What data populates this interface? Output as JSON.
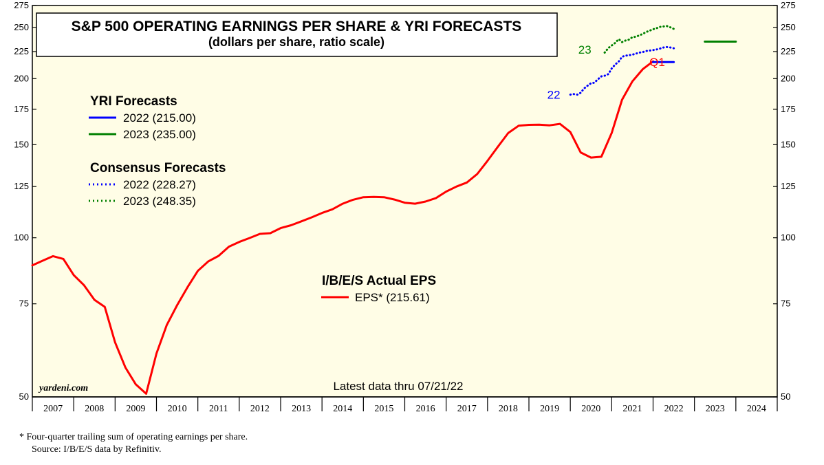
{
  "chart_data": {
    "type": "line",
    "title": "S&P 500 OPERATING EARNINGS PER SHARE & YRI FORECASTS",
    "subtitle": "(dollars per share, ratio scale)",
    "scale": "log",
    "ylim": [
      50,
      275
    ],
    "yticks": [
      "275",
      "250",
      "225",
      "200",
      "175",
      "150",
      "125",
      "100",
      "75",
      "50"
    ],
    "ytick_values": [
      275,
      250,
      225,
      200,
      175,
      150,
      125,
      100,
      75,
      50
    ],
    "xlim": [
      2007,
      2025
    ],
    "years": [
      "2007",
      "2008",
      "2009",
      "2010",
      "2011",
      "2012",
      "2013",
      "2014",
      "2015",
      "2016",
      "2017",
      "2018",
      "2019",
      "2020",
      "2021",
      "2022",
      "2023",
      "2024"
    ],
    "grid": false,
    "legend_groups": {
      "yri_title": "YRI Forecasts",
      "yri_items": [
        {
          "label": "2022 (215.00)",
          "color": "#0000ff",
          "style": "solid"
        },
        {
          "label": "2023 (235.00)",
          "color": "#008000",
          "style": "solid"
        }
      ],
      "consensus_title": "Consensus Forecasts",
      "consensus_items": [
        {
          "label": "2022 (228.27)",
          "color": "#0000ff",
          "style": "dotted"
        },
        {
          "label": "2023 (248.35)",
          "color": "#008000",
          "style": "dotted"
        }
      ],
      "actual_title": "I/B/E/S Actual EPS",
      "actual_items": [
        {
          "label": "EPS* (215.61)",
          "color": "#ff0000",
          "style": "solid"
        }
      ]
    },
    "series": [
      {
        "name": "EPS* (215.61)",
        "color": "#ff0000",
        "style": "solid",
        "x": [
          2007.0,
          2007.25,
          2007.5,
          2007.75,
          2008.0,
          2008.25,
          2008.5,
          2008.75,
          2009.0,
          2009.25,
          2009.5,
          2009.75,
          2010.0,
          2010.25,
          2010.5,
          2010.75,
          2011.0,
          2011.25,
          2011.5,
          2011.75,
          2012.0,
          2012.25,
          2012.5,
          2012.75,
          2013.0,
          2013.25,
          2013.5,
          2013.75,
          2014.0,
          2014.25,
          2014.5,
          2014.75,
          2015.0,
          2015.25,
          2015.5,
          2015.75,
          2016.0,
          2016.25,
          2016.5,
          2016.75,
          2017.0,
          2017.25,
          2017.5,
          2017.75,
          2018.0,
          2018.25,
          2018.5,
          2018.75,
          2019.0,
          2019.25,
          2019.5,
          2019.75,
          2020.0,
          2020.25,
          2020.5,
          2020.75,
          2021.0,
          2021.25,
          2021.5,
          2021.75,
          2022.0
        ],
        "values": [
          88.7,
          90.5,
          92.3,
          91.2,
          85.0,
          81.3,
          76.3,
          74.0,
          63.4,
          56.8,
          52.8,
          50.7,
          60.4,
          68.4,
          74.6,
          80.6,
          86.6,
          90.2,
          92.4,
          96.2,
          98.2,
          99.9,
          101.7,
          102.0,
          104.3,
          105.6,
          107.4,
          109.3,
          111.4,
          113.2,
          116.0,
          118.0,
          119.3,
          119.5,
          119.3,
          118.1,
          116.5,
          116.0,
          117.1,
          118.8,
          122.3,
          125.0,
          127.2,
          132.0,
          139.8,
          148.7,
          157.8,
          162.9,
          163.5,
          163.6,
          163.2,
          164.2,
          158.5,
          145.0,
          141.8,
          142.3,
          157.8,
          182.4,
          197.6,
          208.4,
          215.61
        ]
      },
      {
        "name": "2022 (228.27)",
        "color": "#0000ff",
        "style": "dotted",
        "x": [
          2020.0,
          2020.08,
          2020.17,
          2020.25,
          2020.33,
          2020.42,
          2020.5,
          2020.58,
          2020.67,
          2020.75,
          2020.83,
          2020.92,
          2021.0,
          2021.08,
          2021.17,
          2021.25,
          2021.33,
          2021.42,
          2021.5,
          2021.58,
          2021.67,
          2021.75,
          2021.83,
          2021.92,
          2022.0,
          2022.08,
          2022.17,
          2022.25,
          2022.33,
          2022.42,
          2022.5
        ],
        "values": [
          186.5,
          187.0,
          186.5,
          188.0,
          191.5,
          194.0,
          196.0,
          196.5,
          199.5,
          202.0,
          202.5,
          204.0,
          209.0,
          212.5,
          215.5,
          220.0,
          221.0,
          221.5,
          222.0,
          223.0,
          224.0,
          224.5,
          225.5,
          226.0,
          226.5,
          227.0,
          228.0,
          229.0,
          229.5,
          229.0,
          228.27
        ]
      },
      {
        "name": "2023 (248.35)",
        "color": "#008000",
        "style": "dotted",
        "x": [
          2020.83,
          2020.92,
          2021.0,
          2021.08,
          2021.17,
          2021.25,
          2021.33,
          2021.42,
          2021.5,
          2021.58,
          2021.67,
          2021.75,
          2021.83,
          2021.92,
          2022.0,
          2022.08,
          2022.17,
          2022.25,
          2022.33,
          2022.42,
          2022.5
        ],
        "values": [
          224.0,
          228.5,
          231.0,
          233.5,
          237.5,
          234.5,
          236.0,
          237.0,
          239.5,
          240.0,
          241.5,
          243.0,
          245.0,
          246.5,
          248.0,
          249.0,
          250.5,
          251.0,
          251.5,
          250.0,
          248.35
        ]
      },
      {
        "name": "2022 (215.00)",
        "color": "#0000ff",
        "style": "solid",
        "x": [
          2022.0,
          2022.5
        ],
        "values": [
          215.0,
          215.0
        ]
      },
      {
        "name": "2023 (235.00)",
        "color": "#008000",
        "style": "solid",
        "x": [
          2023.25,
          2024.0
        ],
        "values": [
          235.0,
          235.0
        ]
      }
    ],
    "annotations": [
      {
        "text": "22",
        "x": 2019.6,
        "y": 186.5,
        "color": "#0000ff"
      },
      {
        "text": "23",
        "x": 2020.35,
        "y": 227.0,
        "color": "#008000"
      },
      {
        "text": "Q1",
        "x": 2022.1,
        "y": 215.0,
        "color": "#ff0000"
      }
    ]
  },
  "brand": "yardeni.com",
  "latest_data": "Latest data thru 07/21/22",
  "footnote_line1": "*   Four-quarter trailing sum of operating earnings per share.",
  "footnote_line2": "Source: I/B/E/S data by Refinitiv."
}
